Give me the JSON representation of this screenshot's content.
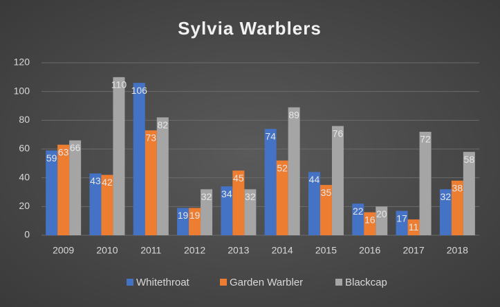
{
  "chart_data": {
    "type": "bar",
    "title": "Sylvia Warblers",
    "categories": [
      "2009",
      "2010",
      "2011",
      "2012",
      "2013",
      "2014",
      "2015",
      "2016",
      "2017",
      "2018"
    ],
    "series": [
      {
        "name": "Whitethroat",
        "color": "#4472c4",
        "values": [
          59,
          43,
          106,
          19,
          34,
          74,
          44,
          22,
          17,
          32
        ]
      },
      {
        "name": "Garden Warbler",
        "color": "#ed7d31",
        "values": [
          63,
          42,
          73,
          19,
          45,
          52,
          35,
          16,
          11,
          38
        ]
      },
      {
        "name": "Blackcap",
        "color": "#a5a5a5",
        "values": [
          66,
          110,
          82,
          32,
          32,
          89,
          76,
          20,
          72,
          58
        ]
      }
    ],
    "ylim": [
      0,
      120
    ],
    "yticks": [
      0,
      20,
      40,
      60,
      80,
      100,
      120
    ],
    "grid": true,
    "legend": "bottom"
  }
}
